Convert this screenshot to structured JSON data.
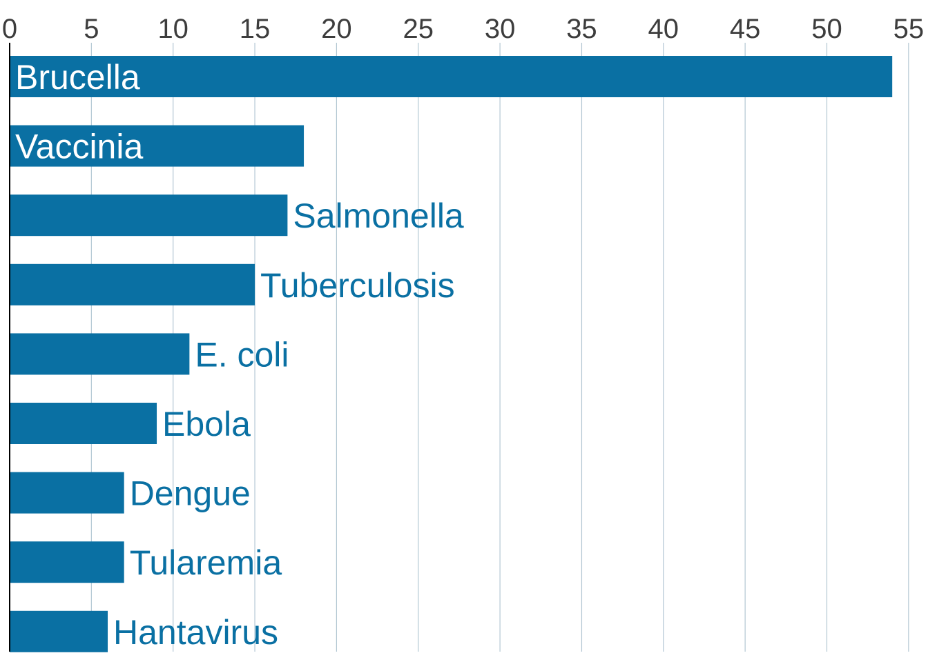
{
  "chart_data": {
    "type": "bar",
    "orientation": "horizontal",
    "categories": [
      "Brucella",
      "Vaccinia",
      "Salmonella",
      "Tuberculosis",
      "E. coli",
      "Ebola",
      "Dengue",
      "Tularemia",
      "Hantavirus"
    ],
    "values": [
      54,
      18,
      17,
      15,
      11,
      9,
      7,
      7,
      6
    ],
    "title": "",
    "xlabel": "",
    "ylabel": "",
    "xlim": [
      0,
      55
    ],
    "xticks": [
      0,
      5,
      10,
      15,
      20,
      25,
      30,
      35,
      40,
      45,
      50,
      55
    ],
    "x_axis_position": "top",
    "grid": "vertical",
    "legend": "none",
    "bar_color": "#0a70a3",
    "grid_color": "#b3c7d3",
    "label_inside_color": "#ffffff",
    "label_outside_color": "#0a70a3"
  }
}
